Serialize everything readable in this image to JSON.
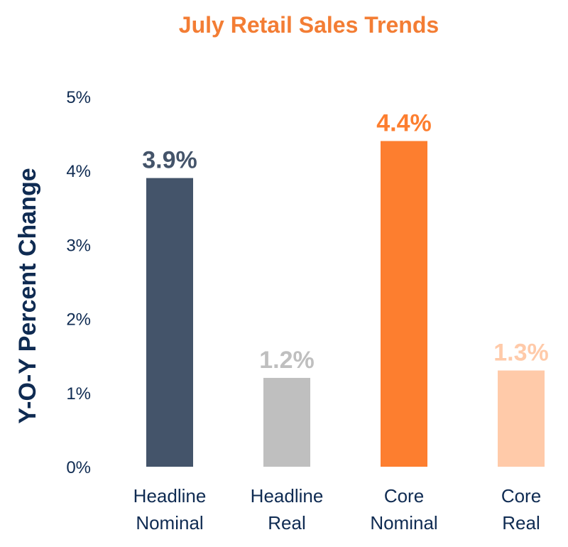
{
  "chart_data": {
    "type": "bar",
    "title": "July Retail Sales Trends",
    "xlabel": "",
    "ylabel": "Y-O-Y Percent Change",
    "ylim": [
      0,
      5
    ],
    "y_ticks": [
      "0%",
      "1%",
      "2%",
      "3%",
      "4%",
      "5%"
    ],
    "categories": [
      [
        "Headline",
        "Nominal"
      ],
      [
        "Headline",
        "Real"
      ],
      [
        "Core",
        "Nominal"
      ],
      [
        "Core",
        "Real"
      ]
    ],
    "values": [
      3.9,
      1.2,
      4.4,
      1.3
    ],
    "data_labels": [
      "3.9%",
      "1.2%",
      "4.4%",
      "1.3%"
    ],
    "bar_colors": [
      "#44546a",
      "#bfbfbf",
      "#fd7e2f",
      "#ffcaa9"
    ],
    "title_color": "#f37d34",
    "axis_text_color": "#0f2b52",
    "grid": false,
    "legend": "none"
  }
}
